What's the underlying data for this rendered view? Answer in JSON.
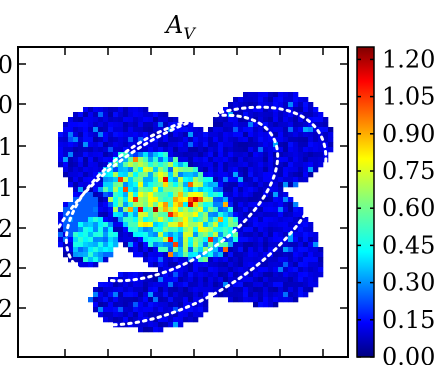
{
  "chart_data": {
    "type": "heatmap",
    "title": "A",
    "title_subscript": "V",
    "xlabel": "",
    "ylabel": "",
    "y_tick_labels": [
      "0",
      "0",
      "1",
      "1",
      "2",
      "2",
      "2"
    ],
    "colormap": "jet",
    "colorbar": {
      "min": 0.0,
      "max": 1.25,
      "ticks": [
        1.2,
        1.05,
        0.9,
        0.75,
        0.6,
        0.45,
        0.3,
        0.15,
        0.0
      ],
      "tick_labels": [
        "1.20",
        "1.05",
        "0.90",
        "0.75",
        "0.60",
        "0.45",
        "0.30",
        "0.15",
        "0.00"
      ],
      "placement": "right"
    },
    "overlay": "dotted white ellipse annuli",
    "background_color": "#ffffff"
  }
}
